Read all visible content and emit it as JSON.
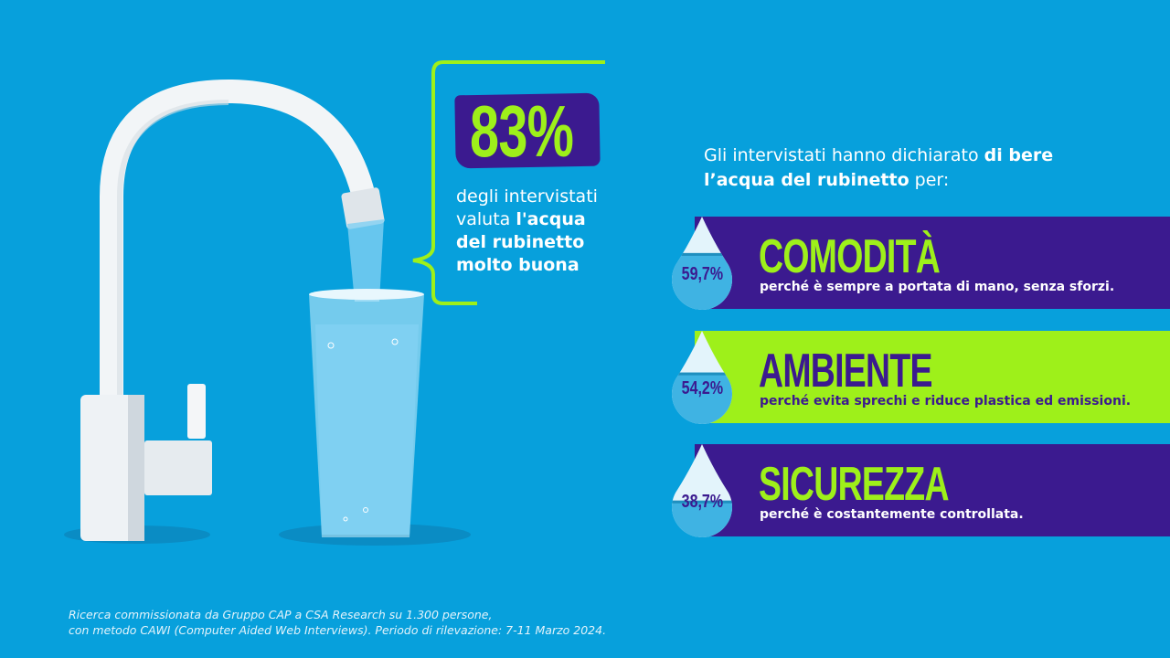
{
  "colors": {
    "background": "#07a0dc",
    "purple": "#3b1a8f",
    "lime": "#9ef01a",
    "white": "#ffffff"
  },
  "highlight": {
    "value": "83%",
    "text_regular_1": "degli intervistati",
    "text_regular_2": "valuta ",
    "text_bold_1": "l'acqua",
    "text_bold_2": "del rubinetto",
    "text_bold_3": "molto buona"
  },
  "intro": {
    "regular_1": "Gli intervistati hanno dichiarato ",
    "bold": "di bere l’acqua del rubinetto",
    "regular_2": " per:"
  },
  "reasons": [
    {
      "percent": "59,7%",
      "fill": 0.597,
      "title": "COMODITÀ",
      "description": "perché è sempre a portata di mano, senza sforzi.",
      "style": "purple"
    },
    {
      "percent": "54,2%",
      "fill": 0.542,
      "title": "AMBIENTE",
      "description": "perché evita sprechi e riduce plastica ed emissioni.",
      "style": "lime"
    },
    {
      "percent": "38,7%",
      "fill": 0.387,
      "title": "SICUREZZA",
      "description": "perché è costantemente controllata.",
      "style": "purple"
    }
  ],
  "footnote": {
    "line1": "Ricerca commissionata da Gruppo CAP a CSA Research su 1.300 persone,",
    "line2": "con metodo CAWI (Computer Aided Web Interviews). Periodo di rilevazione: 7-11 Marzo 2024."
  }
}
